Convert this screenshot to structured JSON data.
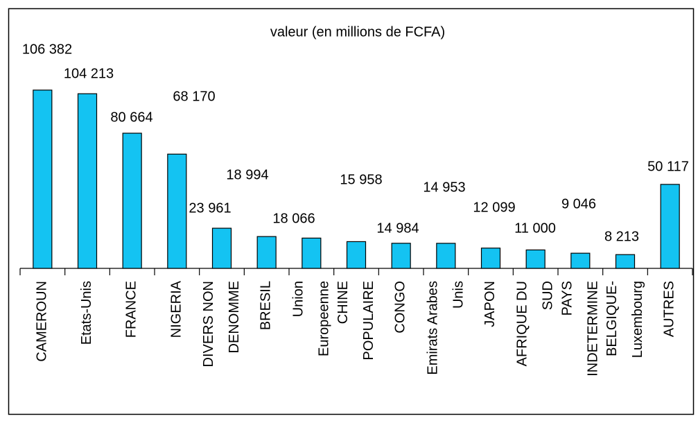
{
  "chart_data": {
    "type": "bar",
    "title": "valeur (en millions de FCFA)",
    "categories": [
      "CAMEROUN",
      "Etats-Unis",
      "FRANCE",
      "NIGERIA",
      "DIVERS NON DENOMME",
      "BRESIL",
      "Union Europeenne",
      "CHINE POPULAIRE",
      "CONGO",
      "Emirats Arabes Unis",
      "JAPON",
      "AFRIQUE DU SUD",
      "PAYS INDETERMINE",
      "BELGIQUE-Luxembourg",
      "AUTRES"
    ],
    "values": [
      106382,
      104213,
      80664,
      68170,
      23961,
      18994,
      18066,
      15958,
      14984,
      14953,
      12099,
      11000,
      9046,
      8213,
      50117
    ],
    "value_labels": [
      "106 382",
      "104 213",
      "80 664",
      "68 170",
      "23 961",
      "18 994",
      "18 066",
      "15 958",
      "14 984",
      "14 953",
      "12 099",
      "11 000",
      "9 046",
      "8 213",
      "50 117"
    ],
    "color": "#14c3f2",
    "ylim": [
      0,
      120000
    ],
    "grid": false
  }
}
